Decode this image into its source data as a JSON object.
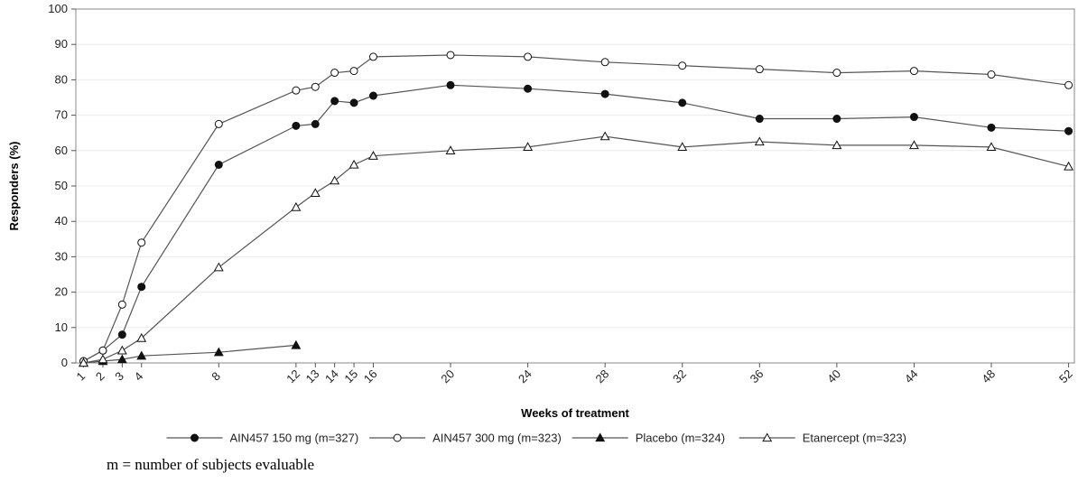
{
  "chart_data": {
    "type": "line",
    "xlabel": "Weeks of treatment",
    "ylabel": "Responders (%)",
    "ylim": [
      0,
      100
    ],
    "yticks": [
      0,
      10,
      20,
      30,
      40,
      50,
      60,
      70,
      80,
      90,
      100
    ],
    "xticks": [
      1,
      2,
      3,
      4,
      8,
      12,
      13,
      14,
      15,
      16,
      20,
      24,
      28,
      32,
      36,
      40,
      44,
      48,
      52
    ],
    "grid": "horizontal",
    "legend_position": "bottom",
    "series": [
      {
        "name": "AIN457 150 mg (m=327)",
        "marker": "filled-circle",
        "x": [
          1,
          2,
          3,
          4,
          8,
          12,
          13,
          14,
          15,
          16,
          20,
          24,
          28,
          32,
          36,
          40,
          44,
          48,
          52
        ],
        "y": [
          0.5,
          3.5,
          8,
          21.5,
          56,
          67,
          67.5,
          74,
          73.5,
          75.5,
          78.5,
          77.5,
          76,
          73.5,
          69,
          69,
          69.5,
          66.5,
          65.5
        ]
      },
      {
        "name": "AIN457 300 mg (m=323)",
        "marker": "open-circle",
        "x": [
          1,
          2,
          3,
          4,
          8,
          12,
          13,
          14,
          15,
          16,
          20,
          24,
          28,
          32,
          36,
          40,
          44,
          48,
          52
        ],
        "y": [
          0.5,
          3.5,
          16.5,
          34,
          67.5,
          77,
          78,
          82,
          82.5,
          86.5,
          87,
          86.5,
          85,
          84,
          83,
          82,
          82.5,
          81.5,
          78.5
        ]
      },
      {
        "name": "Placebo (m=324)",
        "marker": "filled-triangle",
        "x": [
          1,
          2,
          3,
          4,
          8,
          12
        ],
        "y": [
          0,
          0.5,
          1,
          2,
          3,
          5
        ]
      },
      {
        "name": "Etanercept (m=323)",
        "marker": "open-triangle",
        "x": [
          1,
          2,
          3,
          4,
          8,
          12,
          13,
          14,
          15,
          16,
          20,
          24,
          28,
          32,
          36,
          40,
          44,
          48,
          52
        ],
        "y": [
          0,
          1,
          3.5,
          7,
          27,
          44,
          48,
          51.5,
          56,
          58.5,
          60,
          61,
          64,
          61,
          62.5,
          61.5,
          61.5,
          61,
          55.5
        ]
      }
    ]
  },
  "footnote": "m = number of subjects evaluable"
}
